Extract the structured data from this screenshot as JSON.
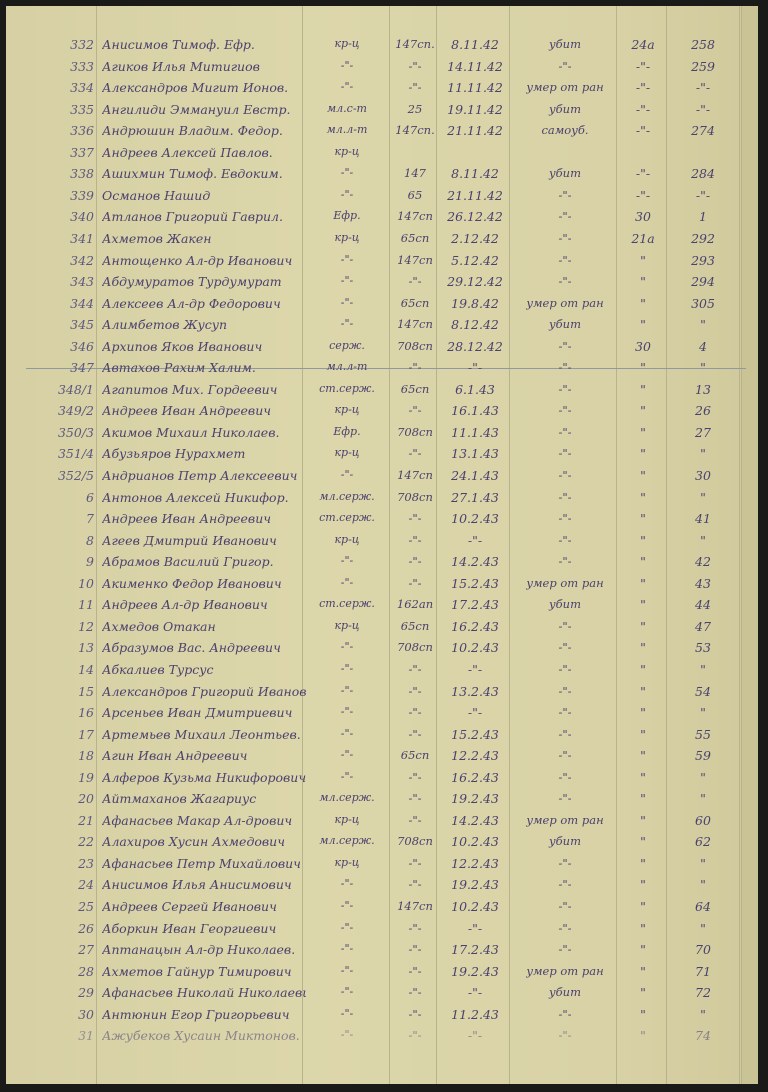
{
  "document": {
    "paper_color": "#d8d2a6",
    "ink_color": "#4b416e",
    "rows": [
      {
        "num": "332",
        "name": "Анисимов Тимоф. Ефр.",
        "rank": "кр-ц",
        "unit": "147сп.",
        "date": "8.11.42",
        "status": "убит",
        "a": "24а",
        "b": "258"
      },
      {
        "num": "333",
        "name": "Агиков Илья Митигиов",
        "rank": "-\"-",
        "unit": "-\"-",
        "date": "14.11.42",
        "status": "-\"-",
        "a": "-\"-",
        "b": "259"
      },
      {
        "num": "334",
        "name": "Александров Мигит Ионов.",
        "rank": "-\"-",
        "unit": "-\"-",
        "date": "11.11.42",
        "status": "умер от ран",
        "a": "-\"-",
        "b": "-\"-"
      },
      {
        "num": "335",
        "name": "Ангилиди Эммануил Евстр.",
        "rank": "мл.с-т",
        "unit": "25",
        "date": "19.11.42",
        "status": "убит",
        "a": "-\"-",
        "b": "-\"-"
      },
      {
        "num": "336",
        "name": "Андрюшин Владим. Федор.",
        "rank": "мл.л-т",
        "unit": "147сп.",
        "date": "21.11.42",
        "status": "самоуб.",
        "a": "-\"-",
        "b": "274"
      },
      {
        "num": "337",
        "name": "Андреев Алексей Павлов.",
        "rank": "кр-ц",
        "unit": "",
        "date": "",
        "status": "",
        "a": "",
        "b": ""
      },
      {
        "num": "338",
        "name": "Ашихмин Тимоф. Евдоким.",
        "rank": "-\"-",
        "unit": "147",
        "date": "8.11.42",
        "status": "убит",
        "a": "-\"-",
        "b": "284"
      },
      {
        "num": "339",
        "name": "Османов Нашид",
        "rank": "-\"-",
        "unit": "65",
        "date": "21.11.42",
        "status": "-\"-",
        "a": "-\"-",
        "b": "-\"-"
      },
      {
        "num": "340",
        "name": "Атланов Григорий Гаврил.",
        "rank": "Ефр.",
        "unit": "147сп",
        "date": "26.12.42",
        "status": "-\"-",
        "a": "30",
        "b": "1"
      },
      {
        "num": "341",
        "name": "Ахметов Жакен",
        "rank": "кр-ц",
        "unit": "65сп",
        "date": "2.12.42",
        "status": "-\"-",
        "a": "21а",
        "b": "292"
      },
      {
        "num": "342",
        "name": "Антощенко Ал-др Иванович",
        "rank": "-\"-",
        "unit": "147сп",
        "date": "5.12.42",
        "status": "-\"-",
        "a": "\"",
        "b": "293"
      },
      {
        "num": "343",
        "name": "Абдумуратов Турдумурат",
        "rank": "-\"-",
        "unit": "-\"-",
        "date": "29.12.42",
        "status": "-\"-",
        "a": "\"",
        "b": "294"
      },
      {
        "num": "344",
        "name": "Алексеев Ал-др Федорович",
        "rank": "-\"-",
        "unit": "65сп",
        "date": "19.8.42",
        "status": "умер от ран",
        "a": "\"",
        "b": "305"
      },
      {
        "num": "345",
        "name": "Алимбетов Жусуп",
        "rank": "-\"-",
        "unit": "147сп",
        "date": "8.12.42",
        "status": "убит",
        "a": "\"",
        "b": "\""
      },
      {
        "num": "346",
        "name": "Архипов Яков Иванович",
        "rank": "серж.",
        "unit": "708сп",
        "date": "28.12.42",
        "status": "-\"-",
        "a": "30",
        "b": "4"
      },
      {
        "num": "347",
        "name": "Автахов Рахим Халим.",
        "rank": "мл.л-т",
        "unit": "-\"-",
        "date": "-\"-",
        "status": "-\"-",
        "a": "\"",
        "b": "\""
      },
      {
        "num": "348/1",
        "name": "Агапитов Мих. Гордеевич",
        "rank": "ст.серж.",
        "unit": "65сп",
        "date": "6.1.43",
        "status": "-\"-",
        "a": "\"",
        "b": "13"
      },
      {
        "num": "349/2",
        "name": "Андреев Иван Андреевич",
        "rank": "кр-ц",
        "unit": "-\"-",
        "date": "16.1.43",
        "status": "-\"-",
        "a": "\"",
        "b": "26"
      },
      {
        "num": "350/3",
        "name": "Акимов Михаил Николаев.",
        "rank": "Ефр.",
        "unit": "708сп",
        "date": "11.1.43",
        "status": "-\"-",
        "a": "\"",
        "b": "27"
      },
      {
        "num": "351/4",
        "name": "Абузьяров Нурахмет",
        "rank": "кр-ц",
        "unit": "-\"-",
        "date": "13.1.43",
        "status": "-\"-",
        "a": "\"",
        "b": "\""
      },
      {
        "num": "352/5",
        "name": "Андрианов Петр Алексеевич",
        "rank": "-\"-",
        "unit": "147сп",
        "date": "24.1.43",
        "status": "-\"-",
        "a": "\"",
        "b": "30"
      },
      {
        "num": "6",
        "name": "Антонов Алексей Никифор.",
        "rank": "мл.серж.",
        "unit": "708сп",
        "date": "27.1.43",
        "status": "-\"-",
        "a": "\"",
        "b": "\""
      },
      {
        "num": "7",
        "name": "Андреев Иван Андреевич",
        "rank": "ст.серж.",
        "unit": "-\"-",
        "date": "10.2.43",
        "status": "-\"-",
        "a": "\"",
        "b": "41"
      },
      {
        "num": "8",
        "name": "Агеев Дмитрий Иванович",
        "rank": "кр-ц",
        "unit": "-\"-",
        "date": "-\"-",
        "status": "-\"-",
        "a": "\"",
        "b": "\""
      },
      {
        "num": "9",
        "name": "Абрамов Василий Григор.",
        "rank": "-\"-",
        "unit": "-\"-",
        "date": "14.2.43",
        "status": "-\"-",
        "a": "\"",
        "b": "42"
      },
      {
        "num": "10",
        "name": "Акименко Федор Иванович",
        "rank": "-\"-",
        "unit": "-\"-",
        "date": "15.2.43",
        "status": "умер от ран",
        "a": "\"",
        "b": "43"
      },
      {
        "num": "11",
        "name": "Андреев Ал-др Иванович",
        "rank": "ст.серж.",
        "unit": "162ап",
        "date": "17.2.43",
        "status": "убит",
        "a": "\"",
        "b": "44"
      },
      {
        "num": "12",
        "name": "Ахмедов Отакан",
        "rank": "кр-ц",
        "unit": "65сп",
        "date": "16.2.43",
        "status": "-\"-",
        "a": "\"",
        "b": "47"
      },
      {
        "num": "13",
        "name": "Абразумов Вас. Андреевич",
        "rank": "-\"-",
        "unit": "708сп",
        "date": "10.2.43",
        "status": "-\"-",
        "a": "\"",
        "b": "53"
      },
      {
        "num": "14",
        "name": "Абкалиев Турсус",
        "rank": "-\"-",
        "unit": "-\"-",
        "date": "-\"-",
        "status": "-\"-",
        "a": "\"",
        "b": "\""
      },
      {
        "num": "15",
        "name": "Александров Григорий Иванов.",
        "rank": "-\"-",
        "unit": "-\"-",
        "date": "13.2.43",
        "status": "-\"-",
        "a": "\"",
        "b": "54"
      },
      {
        "num": "16",
        "name": "Арсеньев Иван Дмитриевич",
        "rank": "-\"-",
        "unit": "-\"-",
        "date": "-\"-",
        "status": "-\"-",
        "a": "\"",
        "b": "\""
      },
      {
        "num": "17",
        "name": "Артемьев Михаил Леонтьев.",
        "rank": "-\"-",
        "unit": "-\"-",
        "date": "15.2.43",
        "status": "-\"-",
        "a": "\"",
        "b": "55"
      },
      {
        "num": "18",
        "name": "Агин Иван Андреевич",
        "rank": "-\"-",
        "unit": "65сп",
        "date": "12.2.43",
        "status": "-\"-",
        "a": "\"",
        "b": "59"
      },
      {
        "num": "19",
        "name": "Алферов Кузьма Никифорович",
        "rank": "-\"-",
        "unit": "-\"-",
        "date": "16.2.43",
        "status": "-\"-",
        "a": "\"",
        "b": "\""
      },
      {
        "num": "20",
        "name": "Айтмаханов Жагариус",
        "rank": "мл.серж.",
        "unit": "-\"-",
        "date": "19.2.43",
        "status": "-\"-",
        "a": "\"",
        "b": "\""
      },
      {
        "num": "21",
        "name": "Афанасьев Макар Ал-дрович",
        "rank": "кр-ц",
        "unit": "-\"-",
        "date": "14.2.43",
        "status": "умер от ран",
        "a": "\"",
        "b": "60"
      },
      {
        "num": "22",
        "name": "Алахиров Хусин Ахмедович",
        "rank": "мл.серж.",
        "unit": "708сп",
        "date": "10.2.43",
        "status": "убит",
        "a": "\"",
        "b": "62"
      },
      {
        "num": "23",
        "name": "Афанасьев Петр Михайлович",
        "rank": "кр-ц",
        "unit": "-\"-",
        "date": "12.2.43",
        "status": "-\"-",
        "a": "\"",
        "b": "\""
      },
      {
        "num": "24",
        "name": "Анисимов Илья Анисимович",
        "rank": "-\"-",
        "unit": "-\"-",
        "date": "19.2.43",
        "status": "-\"-",
        "a": "\"",
        "b": "\""
      },
      {
        "num": "25",
        "name": "Андреев Сергей Иванович",
        "rank": "-\"-",
        "unit": "147сп",
        "date": "10.2.43",
        "status": "-\"-",
        "a": "\"",
        "b": "64"
      },
      {
        "num": "26",
        "name": "Аборкин Иван Георгиевич",
        "rank": "-\"-",
        "unit": "-\"-",
        "date": "-\"-",
        "status": "-\"-",
        "a": "\"",
        "b": "\""
      },
      {
        "num": "27",
        "name": "Аптанацын Ал-др Николаев.",
        "rank": "-\"-",
        "unit": "-\"-",
        "date": "17.2.43",
        "status": "-\"-",
        "a": "\"",
        "b": "70"
      },
      {
        "num": "28",
        "name": "Ахметов Гайнур Тимирович",
        "rank": "-\"-",
        "unit": "-\"-",
        "date": "19.2.43",
        "status": "умер от ран",
        "a": "\"",
        "b": "71"
      },
      {
        "num": "29",
        "name": "Афанасьев Николай Николаевич",
        "rank": "-\"-",
        "unit": "-\"-",
        "date": "-\"-",
        "status": "убит",
        "a": "\"",
        "b": "72"
      },
      {
        "num": "30",
        "name": "Антюнин Егор Григорьевич",
        "rank": "-\"-",
        "unit": "-\"-",
        "date": "11.2.43",
        "status": "-\"-",
        "a": "\"",
        "b": "\""
      },
      {
        "num": "31",
        "name": "Ажубеков Хусаин Миктонов.",
        "rank": "-\"-",
        "unit": "-\"-",
        "date": "-\"-",
        "status": "-\"-",
        "a": "\"",
        "b": "74"
      }
    ]
  }
}
